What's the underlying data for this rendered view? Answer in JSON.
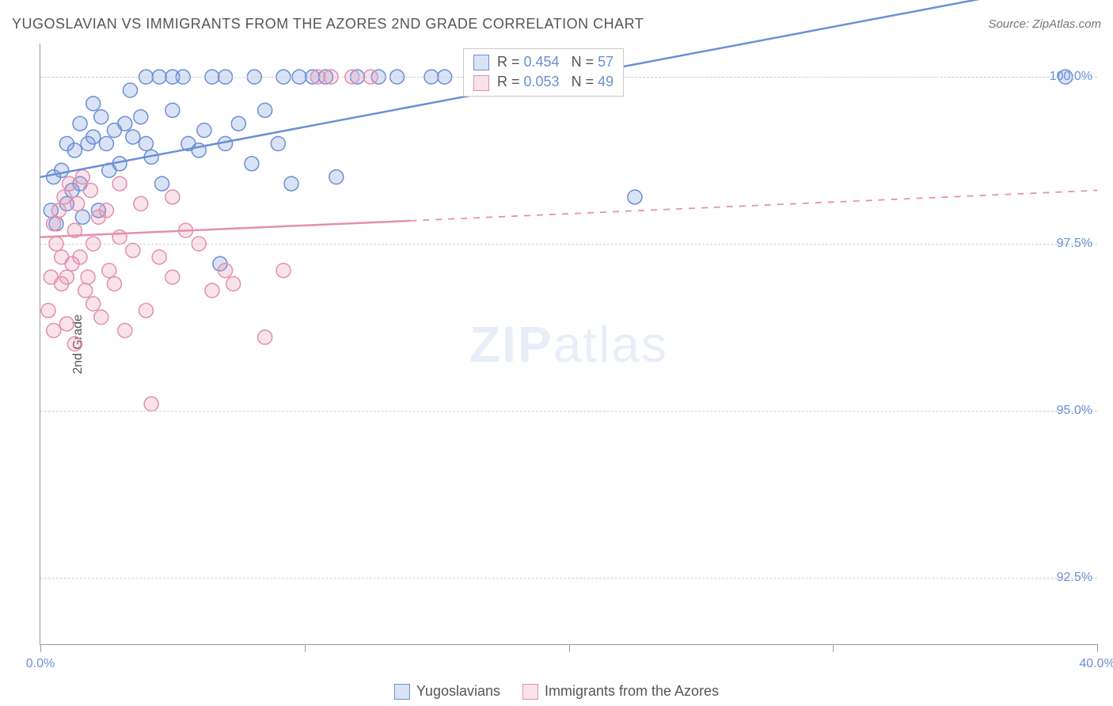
{
  "title": "YUGOSLAVIAN VS IMMIGRANTS FROM THE AZORES 2ND GRADE CORRELATION CHART",
  "source": "Source: ZipAtlas.com",
  "ylabel": "2nd Grade",
  "watermark_bold": "ZIP",
  "watermark_light": "atlas",
  "chart": {
    "type": "scatter",
    "xlim": [
      0,
      40
    ],
    "ylim": [
      91.5,
      100.5
    ],
    "xtick_positions": [
      0,
      10,
      20,
      30,
      40
    ],
    "xtick_labels": [
      "0.0%",
      "",
      "",
      "",
      "40.0%"
    ],
    "ytick_positions": [
      92.5,
      95.0,
      97.5,
      100.0
    ],
    "ytick_labels": [
      "92.5%",
      "95.0%",
      "97.5%",
      "100.0%"
    ],
    "grid_color": "#d0d0d0",
    "background_color": "#ffffff",
    "marker_radius": 9,
    "marker_stroke_width": 1.5,
    "marker_fill_opacity": 0.25,
    "line_width": 2.5,
    "series": [
      {
        "name": "Yugoslavians",
        "color": "#6b8fd6",
        "r_value": "0.454",
        "n_value": "57",
        "trend": {
          "x1": 0,
          "y1": 98.5,
          "x2": 24,
          "y2": 100.3,
          "dash_after_x": 40
        },
        "points": [
          [
            0.4,
            98.0
          ],
          [
            0.5,
            98.5
          ],
          [
            0.6,
            97.8
          ],
          [
            0.8,
            98.6
          ],
          [
            1.0,
            98.1
          ],
          [
            1.0,
            99.0
          ],
          [
            1.2,
            98.3
          ],
          [
            1.3,
            98.9
          ],
          [
            1.5,
            99.3
          ],
          [
            1.5,
            98.4
          ],
          [
            1.6,
            97.9
          ],
          [
            1.8,
            99.0
          ],
          [
            2.0,
            99.1
          ],
          [
            2.0,
            99.6
          ],
          [
            2.2,
            98.0
          ],
          [
            2.3,
            99.4
          ],
          [
            2.5,
            99.0
          ],
          [
            2.6,
            98.6
          ],
          [
            2.8,
            99.2
          ],
          [
            3.0,
            98.7
          ],
          [
            3.2,
            99.3
          ],
          [
            3.4,
            99.8
          ],
          [
            3.5,
            99.1
          ],
          [
            3.8,
            99.4
          ],
          [
            4.0,
            100.0
          ],
          [
            4.0,
            99.0
          ],
          [
            4.2,
            98.8
          ],
          [
            4.5,
            100.0
          ],
          [
            4.6,
            98.4
          ],
          [
            5.0,
            99.5
          ],
          [
            5.0,
            100.0
          ],
          [
            5.4,
            100.0
          ],
          [
            5.6,
            99.0
          ],
          [
            6.0,
            98.9
          ],
          [
            6.2,
            99.2
          ],
          [
            6.5,
            100.0
          ],
          [
            6.8,
            97.2
          ],
          [
            7.0,
            99.0
          ],
          [
            7.0,
            100.0
          ],
          [
            7.5,
            99.3
          ],
          [
            8.0,
            98.7
          ],
          [
            8.1,
            100.0
          ],
          [
            8.5,
            99.5
          ],
          [
            9.0,
            99.0
          ],
          [
            9.2,
            100.0
          ],
          [
            9.5,
            98.4
          ],
          [
            9.8,
            100.0
          ],
          [
            10.3,
            100.0
          ],
          [
            10.8,
            100.0
          ],
          [
            11.2,
            98.5
          ],
          [
            12.0,
            100.0
          ],
          [
            12.8,
            100.0
          ],
          [
            13.5,
            100.0
          ],
          [
            14.8,
            100.0
          ],
          [
            15.3,
            100.0
          ],
          [
            22.5,
            98.2
          ],
          [
            38.8,
            100.0
          ]
        ]
      },
      {
        "name": "Immigrants from the Azores",
        "color": "#e38fb0",
        "r_value": "0.053",
        "n_value": "49",
        "trend": {
          "x1": 0,
          "y1": 97.6,
          "x2": 40,
          "y2": 98.3,
          "dash_after_x": 14
        },
        "points": [
          [
            0.3,
            96.5
          ],
          [
            0.4,
            97.0
          ],
          [
            0.5,
            97.8
          ],
          [
            0.5,
            96.2
          ],
          [
            0.6,
            97.5
          ],
          [
            0.7,
            98.0
          ],
          [
            0.8,
            96.9
          ],
          [
            0.8,
            97.3
          ],
          [
            0.9,
            98.2
          ],
          [
            1.0,
            97.0
          ],
          [
            1.0,
            96.3
          ],
          [
            1.1,
            98.4
          ],
          [
            1.2,
            97.2
          ],
          [
            1.3,
            97.7
          ],
          [
            1.3,
            96.0
          ],
          [
            1.4,
            98.1
          ],
          [
            1.5,
            97.3
          ],
          [
            1.6,
            98.5
          ],
          [
            1.7,
            96.8
          ],
          [
            1.8,
            97.0
          ],
          [
            1.9,
            98.3
          ],
          [
            2.0,
            96.6
          ],
          [
            2.0,
            97.5
          ],
          [
            2.2,
            97.9
          ],
          [
            2.3,
            96.4
          ],
          [
            2.5,
            98.0
          ],
          [
            2.6,
            97.1
          ],
          [
            2.8,
            96.9
          ],
          [
            3.0,
            97.6
          ],
          [
            3.0,
            98.4
          ],
          [
            3.2,
            96.2
          ],
          [
            3.5,
            97.4
          ],
          [
            3.8,
            98.1
          ],
          [
            4.0,
            96.5
          ],
          [
            4.2,
            95.1
          ],
          [
            4.5,
            97.3
          ],
          [
            5.0,
            97.0
          ],
          [
            5.0,
            98.2
          ],
          [
            5.5,
            97.7
          ],
          [
            6.0,
            97.5
          ],
          [
            6.5,
            96.8
          ],
          [
            7.0,
            97.1
          ],
          [
            7.3,
            96.9
          ],
          [
            8.5,
            96.1
          ],
          [
            9.2,
            97.1
          ],
          [
            10.5,
            100.0
          ],
          [
            11.0,
            100.0
          ],
          [
            11.8,
            100.0
          ],
          [
            12.5,
            100.0
          ]
        ]
      }
    ]
  },
  "legend_top": {
    "r_label": "R = ",
    "n_label": "N = "
  },
  "legend_bottom": [
    {
      "label": "Yugoslavians",
      "color": "#6b8fd6",
      "fill": "rgba(107,143,214,0.25)"
    },
    {
      "label": "Immigrants from the Azores",
      "color": "#e38fb0",
      "fill": "rgba(227,143,176,0.25)"
    }
  ]
}
